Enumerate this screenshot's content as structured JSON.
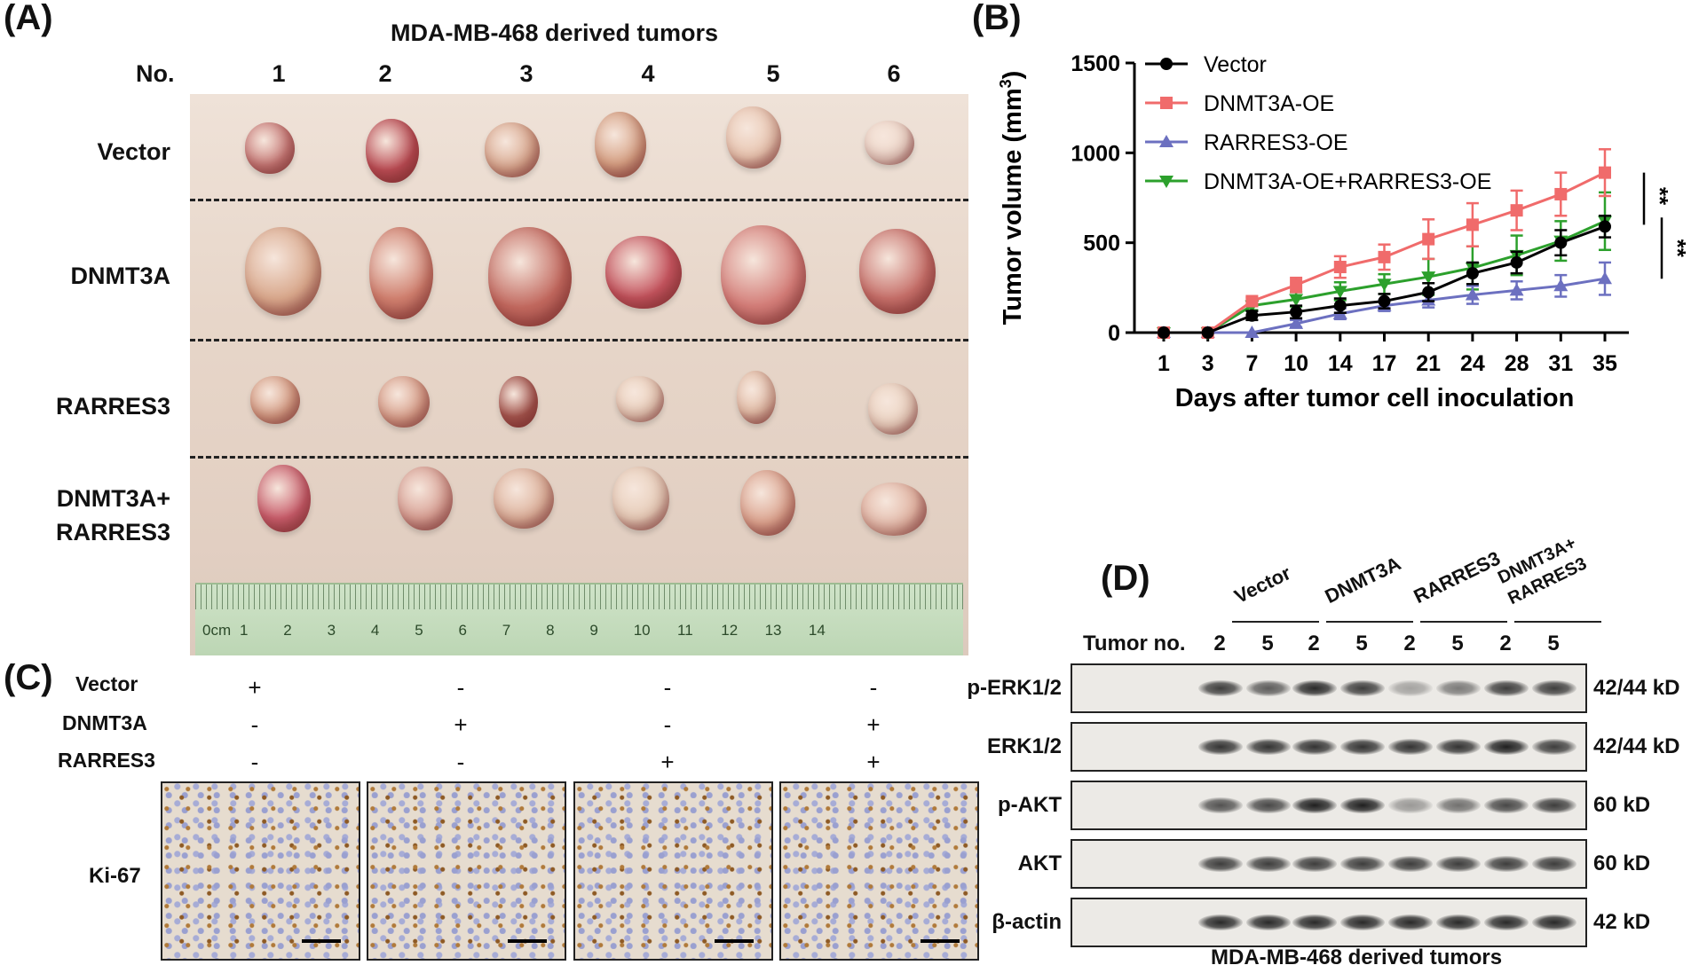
{
  "panel_a": {
    "letter": "(A)",
    "title": "MDA-MB-468 derived tumors",
    "no_label": "No.",
    "columns": [
      "1",
      "2",
      "3",
      "4",
      "5",
      "6"
    ],
    "rows": [
      "Vector",
      "DNMT3A",
      "RARRES3",
      "DNMT3A+\nRARRES3"
    ],
    "ruler_unit": "0cm",
    "ruler_numbers": [
      "1",
      "2",
      "3",
      "4",
      "5",
      "6",
      "7",
      "8",
      "9",
      "10",
      "11",
      "12",
      "13",
      "14"
    ]
  },
  "panel_c": {
    "letter": "(C)",
    "row_labels": [
      "Vector",
      "DNMT3A",
      "RARRES3"
    ],
    "marks": [
      [
        "+",
        "-",
        "-",
        "-"
      ],
      [
        "-",
        "+",
        "-",
        "+"
      ],
      [
        "-",
        "-",
        "+",
        "+"
      ]
    ],
    "stain_label": "Ki-67"
  },
  "panel_d": {
    "letter": "(D)",
    "groups": [
      "Vector",
      "DNMT3A",
      "RARRES3",
      "DNMT3A+\nRARRES3"
    ],
    "tumor_no_label": "Tumor no.",
    "lanes": [
      "2",
      "5",
      "2",
      "5",
      "2",
      "5",
      "2",
      "5"
    ],
    "blots": [
      {
        "label": "p-ERK1/2",
        "size": "42/44 kD"
      },
      {
        "label": "ERK1/2",
        "size": "42/44 kD"
      },
      {
        "label": "p-AKT",
        "size": "60 kD"
      },
      {
        "label": "AKT",
        "size": "60 kD"
      },
      {
        "label": "β-actin",
        "size": "42 kD"
      }
    ],
    "intensities": [
      [
        0.85,
        0.7,
        0.95,
        0.85,
        0.35,
        0.55,
        0.85,
        0.85
      ],
      [
        0.9,
        0.9,
        0.9,
        0.9,
        0.9,
        0.9,
        1.0,
        0.85
      ],
      [
        0.75,
        0.8,
        1.0,
        1.0,
        0.4,
        0.6,
        0.8,
        0.85
      ],
      [
        0.85,
        0.85,
        0.85,
        0.85,
        0.85,
        0.85,
        0.85,
        0.85
      ],
      [
        0.95,
        0.95,
        0.95,
        0.95,
        0.95,
        0.95,
        0.95,
        0.95
      ]
    ],
    "footer": "MDA-MB-468 derived tumors"
  },
  "chart_data": {
    "panel_letter": "(B)",
    "type": "line",
    "xlabel": "Days after tumor cell inoculation",
    "ylabel": "Tumor volume (mm",
    "ylabel_sup": "3",
    "ylabel_end": ")",
    "categories": [
      "1",
      "3",
      "7",
      "10",
      "14",
      "17",
      "21",
      "24",
      "28",
      "31",
      "35"
    ],
    "ylim": [
      0,
      1500
    ],
    "yticks": [
      "0",
      "500",
      "1000",
      "1500"
    ],
    "significance": [
      "**",
      "**"
    ],
    "colors": {
      "Vector": "#000000",
      "DNMT3A-OE": "#f06b6b",
      "RARRES3-OE": "#6c70c0",
      "DNMT3A-OE+RARRES3-OE": "#2ca02c"
    },
    "series": [
      {
        "name": "Vector",
        "marker": "circle",
        "values": [
          0,
          0,
          95,
          115,
          150,
          175,
          225,
          330,
          390,
          500,
          590
        ],
        "errors": [
          0,
          0,
          25,
          35,
          40,
          40,
          50,
          60,
          60,
          70,
          60
        ]
      },
      {
        "name": "DNMT3A-OE",
        "marker": "square",
        "values": [
          0,
          0,
          175,
          265,
          365,
          420,
          520,
          600,
          680,
          770,
          890
        ],
        "errors": [
          0,
          0,
          20,
          40,
          60,
          70,
          110,
          120,
          110,
          120,
          130
        ]
      },
      {
        "name": "RARRES3-OE",
        "marker": "triangle-up",
        "values": [
          0,
          0,
          0,
          50,
          105,
          150,
          180,
          210,
          235,
          260,
          300
        ],
        "errors": [
          0,
          0,
          0,
          20,
          30,
          30,
          40,
          50,
          50,
          60,
          90
        ]
      },
      {
        "name": "DNMT3A-OE+RARRES3-OE",
        "marker": "triangle-down",
        "values": [
          0,
          0,
          150,
          185,
          230,
          270,
          310,
          360,
          430,
          510,
          620
        ],
        "errors": [
          0,
          0,
          25,
          40,
          50,
          55,
          100,
          120,
          110,
          110,
          160
        ]
      }
    ]
  }
}
